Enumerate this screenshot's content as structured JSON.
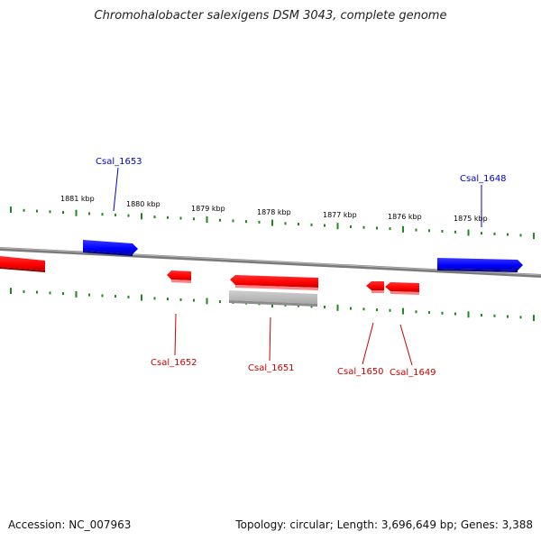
{
  "title": "Chromohalobacter salexigens DSM 3043, complete genome",
  "footer": {
    "accession": "Accession: NC_007963",
    "summary": "Topology: circular; Length: 3,696,649 bp; Genes: 3,388"
  },
  "scale_labels": [
    "1881 kbp",
    "1880 kbp",
    "1879 kbp",
    "1878 kbp",
    "1877 kbp",
    "1876 kbp",
    "1875 kbp"
  ],
  "genes": [
    {
      "id": "Csal_1653",
      "strand": "forward",
      "color": "#0000ff"
    },
    {
      "id": "Csal_1648",
      "strand": "forward",
      "color": "#0000ff"
    },
    {
      "id": "Csal_1652",
      "strand": "reverse",
      "color": "#ff0000"
    },
    {
      "id": "Csal_1651",
      "strand": "reverse",
      "color": "#ff0000"
    },
    {
      "id": "Csal_1650",
      "strand": "reverse",
      "color": "#ff0000"
    },
    {
      "id": "Csal_1649",
      "strand": "reverse",
      "color": "#ff0000"
    }
  ],
  "colors": {
    "forward": "#0000ff",
    "reverse": "#ff0000",
    "backbone": "#808080",
    "ticks": "#1e8a1e",
    "pseudo": "#b4b4b4"
  }
}
